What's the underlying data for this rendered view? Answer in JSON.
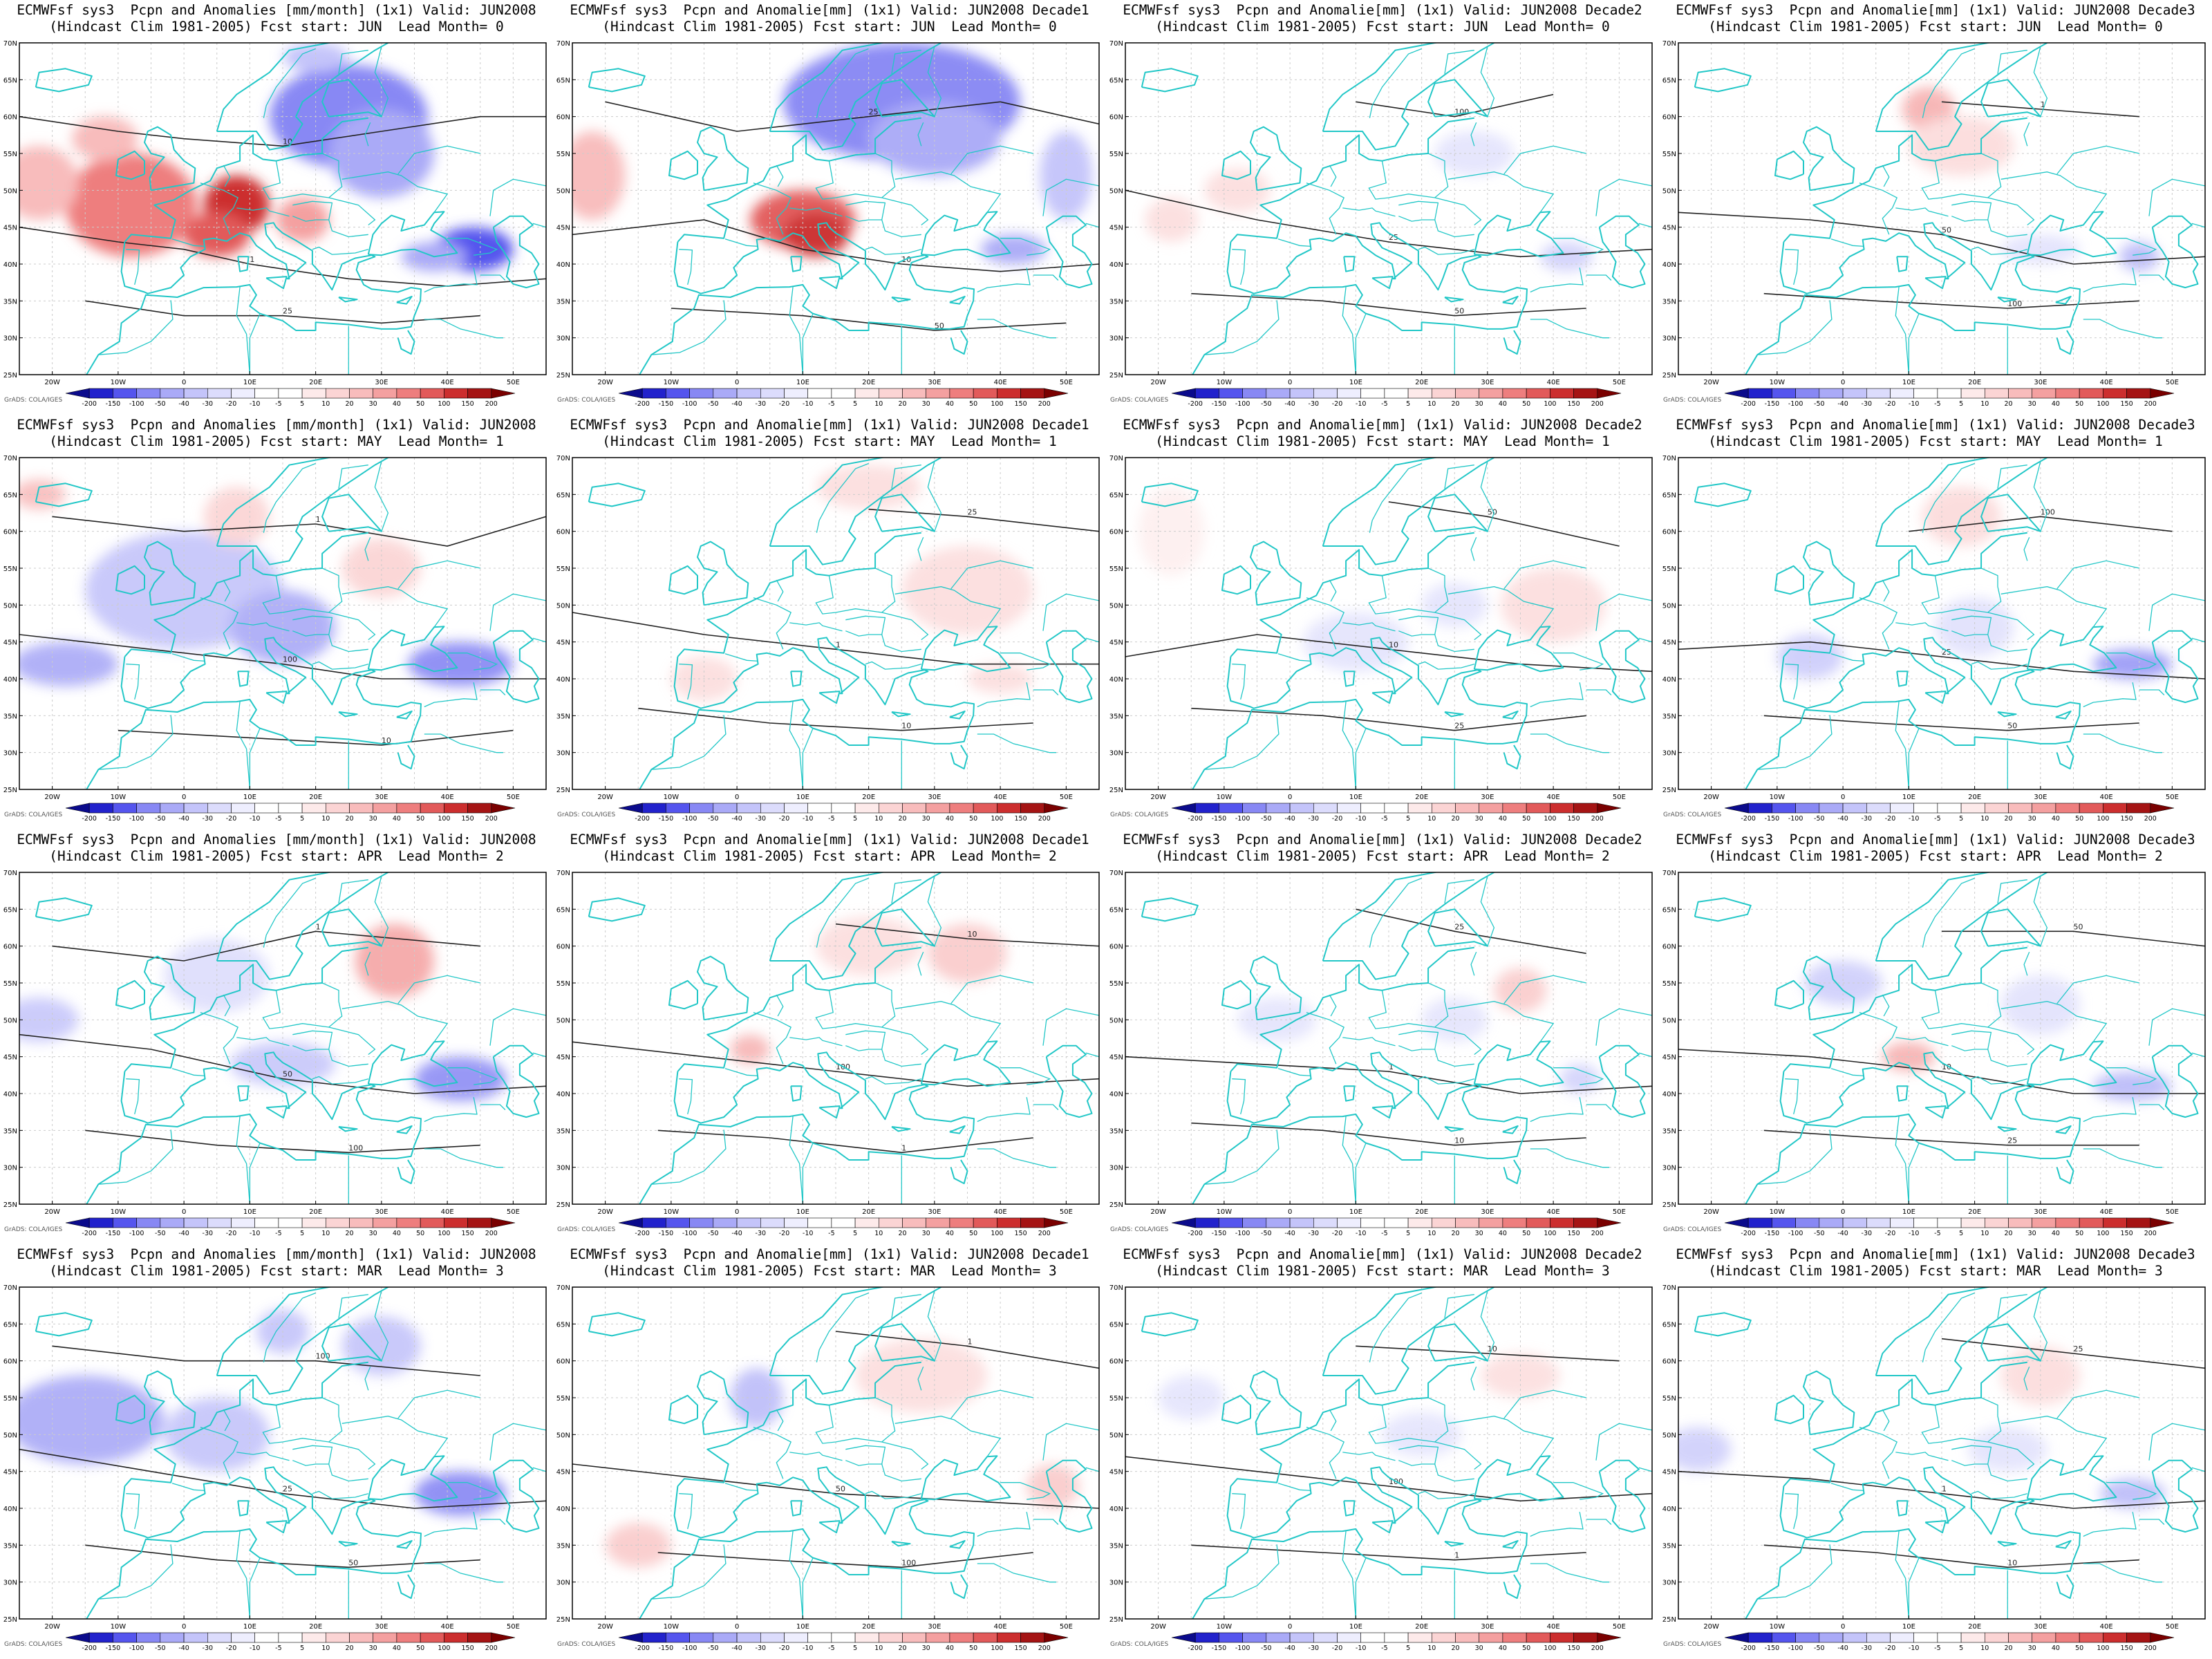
{
  "colors": {
    "coastline": "#22c7c7",
    "contour": "#222222",
    "grid": "#cccccc",
    "scale": [
      "#0b0b8c",
      "#2222cc",
      "#5555ee",
      "#8888f4",
      "#aaaaf7",
      "#c4c4fa",
      "#dcdcfc",
      "#eeeefe",
      "#ffffff",
      "#ffffff",
      "#fdeaea",
      "#fbd4d4",
      "#f8bcbc",
      "#f4a0a0",
      "#ee7e7e",
      "#e25a5a",
      "#cc2e2e",
      "#a51414",
      "#7a0000"
    ]
  },
  "scale_labels": [
    "-200",
    "-150",
    "-100",
    "-50",
    "-40",
    "-30",
    "-20",
    "-10",
    "-5",
    "5",
    "10",
    "20",
    "30",
    "40",
    "50",
    "100",
    "150",
    "200"
  ],
  "lat_labels": [
    "70N",
    "65N",
    "60N",
    "55N",
    "50N",
    "45N",
    "40N",
    "35N",
    "30N",
    "25N"
  ],
  "lon_labels": [
    "20W",
    "10W",
    "0",
    "10E",
    "20E",
    "30E",
    "40E",
    "50E"
  ],
  "credit": "GrADS: COLA/IGES",
  "panels": [
    {
      "title1": "ECMWFsf sys3  Pcpn and Anomalies [mm/month] (1x1) Valid: JUN2008",
      "title2": "(Hindcast Clim 1981-2005) Fcst start: JUN  Lead Month= 0",
      "intensity": 1.0,
      "variant": 0
    },
    {
      "title1": "ECMWFsf sys3  Pcpn and Anomalie[mm] (1x1) Valid: JUN2008 Decade1",
      "title2": "(Hindcast Clim 1981-2005) Fcst start: JUN  Lead Month= 0",
      "intensity": 0.9,
      "variant": 1
    },
    {
      "title1": "ECMWFsf sys3  Pcpn and Anomalie[mm] (1x1) Valid: JUN2008 Decade2",
      "title2": "(Hindcast Clim 1981-2005) Fcst start: JUN  Lead Month= 0",
      "intensity": 0.35,
      "variant": 2
    },
    {
      "title1": "ECMWFsf sys3  Pcpn and Anomalie[mm] (1x1) Valid: JUN2008 Decade3",
      "title2": "(Hindcast Clim 1981-2005) Fcst start: JUN  Lead Month= 0",
      "intensity": 0.45,
      "variant": 3
    },
    {
      "title1": "ECMWFsf sys3  Pcpn and Anomalies [mm/month] (1x1) Valid: JUN2008",
      "title2": "(Hindcast Clim 1981-2005) Fcst start: MAY  Lead Month= 1",
      "intensity": 0.8,
      "variant": 4
    },
    {
      "title1": "ECMWFsf sys3  Pcpn and Anomalie[mm] (1x1) Valid: JUN2008 Decade1",
      "title2": "(Hindcast Clim 1981-2005) Fcst start: MAY  Lead Month= 1",
      "intensity": 0.35,
      "variant": 5
    },
    {
      "title1": "ECMWFsf sys3  Pcpn and Anomalie[mm] (1x1) Valid: JUN2008 Decade2",
      "title2": "(Hindcast Clim 1981-2005) Fcst start: MAY  Lead Month= 1",
      "intensity": 0.35,
      "variant": 6
    },
    {
      "title1": "ECMWFsf sys3  Pcpn and Anomalie[mm] (1x1) Valid: JUN2008 Decade3",
      "title2": "(Hindcast Clim 1981-2005) Fcst start: MAY  Lead Month= 1",
      "intensity": 0.5,
      "variant": 7
    },
    {
      "title1": "ECMWFsf sys3  Pcpn and Anomalies [mm/month] (1x1) Valid: JUN2008",
      "title2": "(Hindcast Clim 1981-2005) Fcst start: APR  Lead Month= 2",
      "intensity": 0.7,
      "variant": 8
    },
    {
      "title1": "ECMWFsf sys3  Pcpn and Anomalie[mm] (1x1) Valid: JUN2008 Decade1",
      "title2": "(Hindcast Clim 1981-2005) Fcst start: APR  Lead Month= 2",
      "intensity": 0.35,
      "variant": 9
    },
    {
      "title1": "ECMWFsf sys3  Pcpn and Anomalie[mm] (1x1) Valid: JUN2008 Decade2",
      "title2": "(Hindcast Clim 1981-2005) Fcst start: APR  Lead Month= 2",
      "intensity": 0.3,
      "variant": 10
    },
    {
      "title1": "ECMWFsf sys3  Pcpn and Anomalie[mm] (1x1) Valid: JUN2008 Decade3",
      "title2": "(Hindcast Clim 1981-2005) Fcst start: APR  Lead Month= 2",
      "intensity": 0.45,
      "variant": 11
    },
    {
      "title1": "ECMWFsf sys3  Pcpn and Anomalies [mm/month] (1x1) Valid: JUN2008",
      "title2": "(Hindcast Clim 1981-2005) Fcst start: MAR  Lead Month= 3",
      "intensity": 0.8,
      "variant": 12
    },
    {
      "title1": "ECMWFsf sys3  Pcpn and Anomalie[mm] (1x1) Valid: JUN2008 Decade1",
      "title2": "(Hindcast Clim 1981-2005) Fcst start: MAR  Lead Month= 3",
      "intensity": 0.35,
      "variant": 13
    },
    {
      "title1": "ECMWFsf sys3  Pcpn and Anomalie[mm] (1x1) Valid: JUN2008 Decade2",
      "title2": "(Hindcast Clim 1981-2005) Fcst start: MAR  Lead Month= 3",
      "intensity": 0.3,
      "variant": 14
    },
    {
      "title1": "ECMWFsf sys3  Pcpn and Anomalie[mm] (1x1) Valid: JUN2008 Decade3",
      "title2": "(Hindcast Clim 1981-2005) Fcst start: MAR  Lead Month= 3",
      "intensity": 0.4,
      "variant": 15
    }
  ],
  "chart_data": {
    "type": "heatmap",
    "x_range": [
      -25,
      55
    ],
    "y_range": [
      25,
      70
    ],
    "colorbar_bins": [
      "-200",
      "-150",
      "-100",
      "-50",
      "-40",
      "-30",
      "-20",
      "-10",
      "-5",
      "5",
      "10",
      "20",
      "30",
      "40",
      "50",
      "100",
      "150",
      "200"
    ],
    "contour_labels": [
      "1",
      "10",
      "25",
      "50",
      "100"
    ],
    "grid": true
  }
}
